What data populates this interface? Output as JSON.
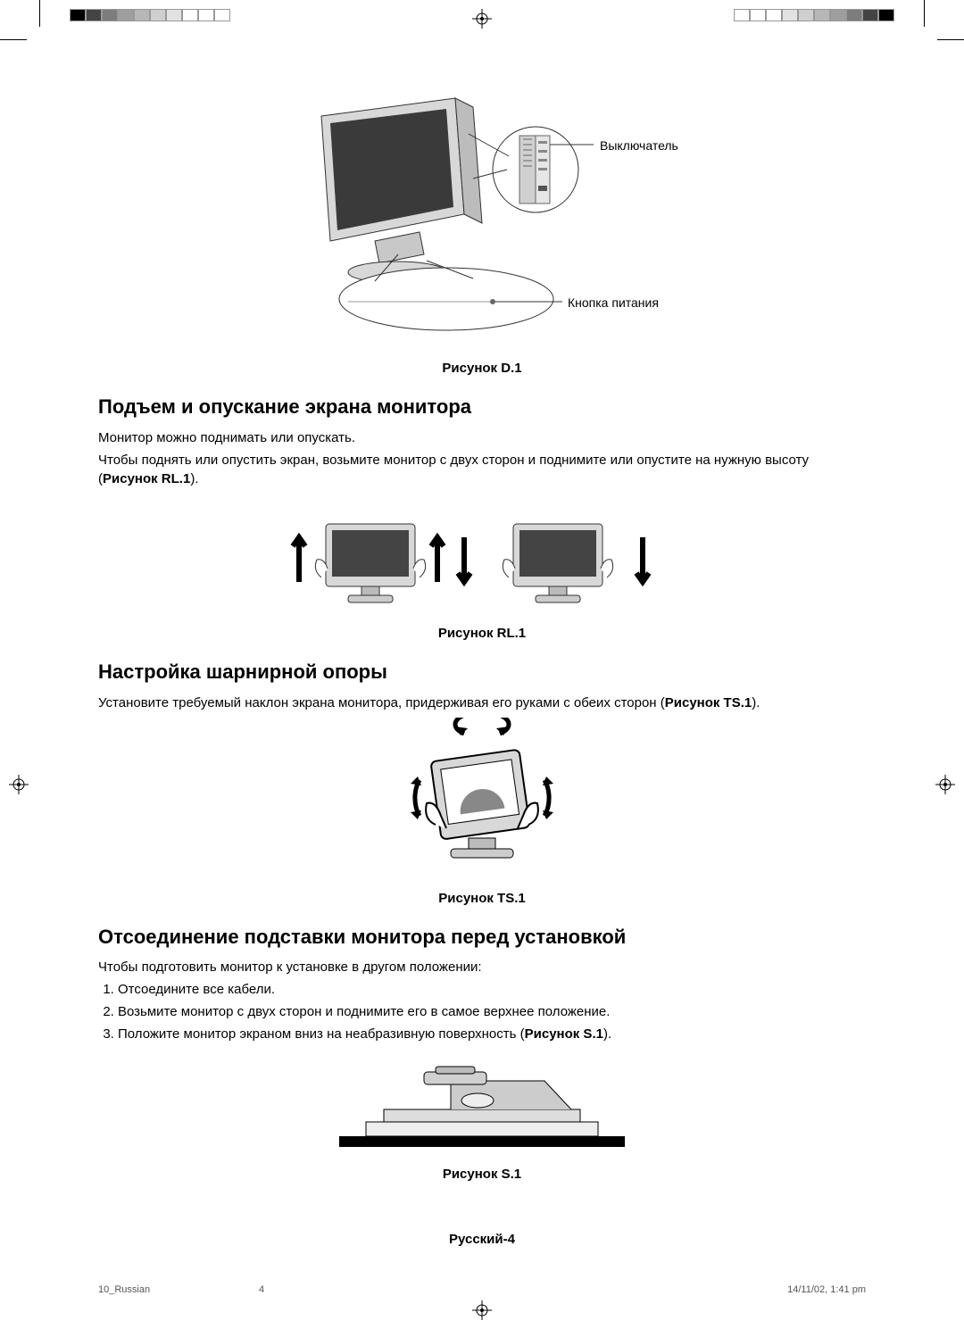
{
  "color_bar_left": [
    "#000000",
    "#444444",
    "#7d7d7d",
    "#9e9e9e",
    "#b7b7b7",
    "#cfcfcf",
    "#e2e2e2",
    "#ffffff",
    "#ffffff",
    "#ffffff"
  ],
  "color_bar_right": [
    "#ffffff",
    "#ffffff",
    "#ffffff",
    "#e2e2e2",
    "#cfcfcf",
    "#b7b7b7",
    "#9e9e9e",
    "#7d7d7d",
    "#444444",
    "#000000"
  ],
  "figure_d1": {
    "label_switch": "Выключатель",
    "label_power": "Кнопка питания",
    "caption": "Рисунок D.1"
  },
  "section_raise": {
    "heading": "Подъем и опускание экрана монитора",
    "p1": "Монитор можно поднимать или опускать.",
    "p2_a": "Чтобы поднять или опустить экран, возьмите монитор с двух сторон и поднимите или опустите на нужную высоту (",
    "p2_ref": "Рисунок RL.1",
    "p2_b": ")."
  },
  "figure_rl1": {
    "caption": "Рисунок RL.1"
  },
  "section_tilt": {
    "heading": "Настройка шарнирной опоры",
    "p_a": "Установите требуемый наклон экрана монитора, придерживая его руками с обеих сторон (",
    "p_ref": "Рисунок TS.1",
    "p_b": ")."
  },
  "figure_ts1": {
    "caption": "Рисунок TS.1"
  },
  "section_remove": {
    "heading": "Отсоединение подставки монитора перед установкой",
    "intro": "Чтобы подготовить монитор к установке в другом положении:",
    "steps": [
      "Отсоедините все кабели.",
      "Возьмите монитор с двух сторон и поднимите его в самое верхнее положение."
    ],
    "step3_a": "Положите монитор экраном вниз на неабразивную поверхность (",
    "step3_ref": "Рисунок S.1",
    "step3_b": ")."
  },
  "figure_s1": {
    "caption": "Рисунок S.1"
  },
  "page_footer": "Русский-4",
  "print_footer": {
    "left": "10_Russian",
    "mid": "4",
    "right": "14/11/02, 1:41 pm"
  }
}
